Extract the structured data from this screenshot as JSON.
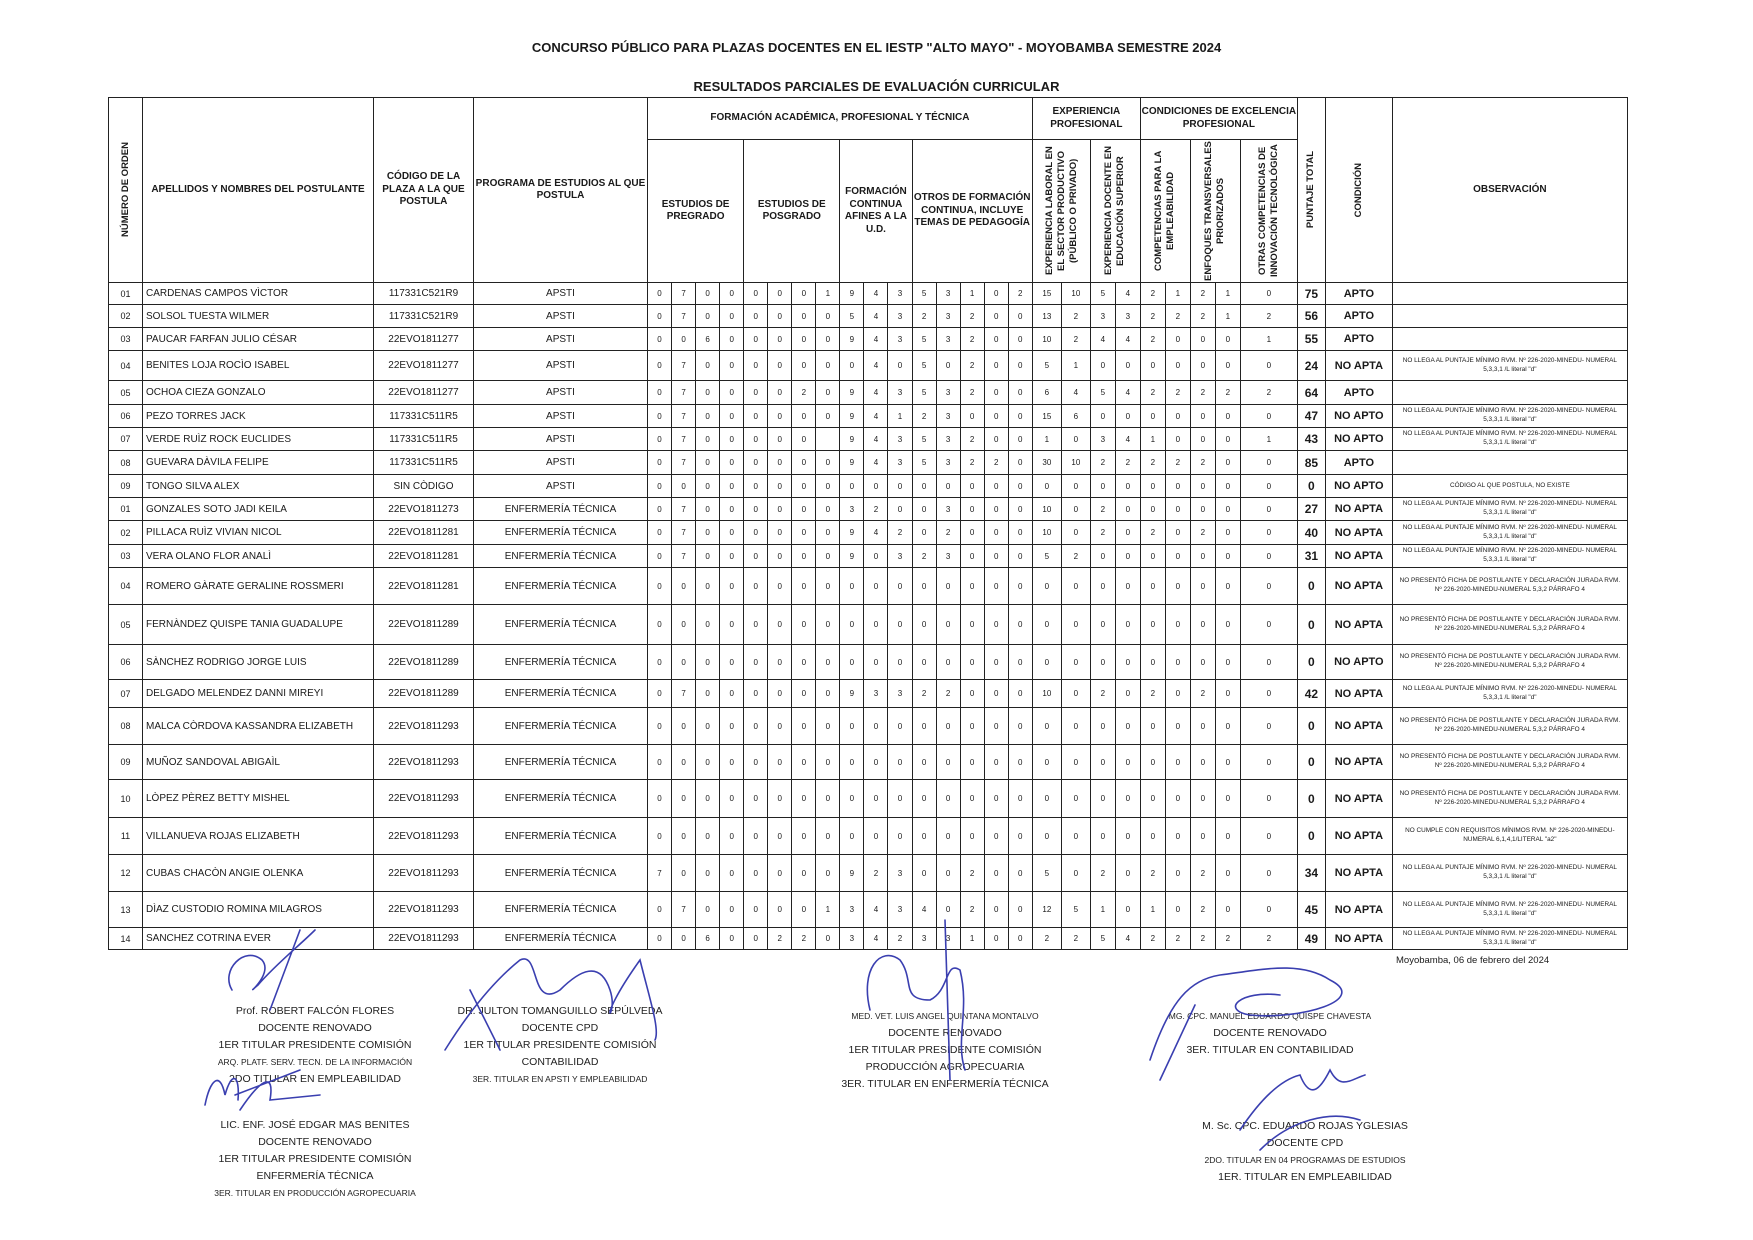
{
  "document": {
    "title": "CONCURSO PÚBLICO PARA PLAZAS DOCENTES EN EL IESTP \"ALTO MAYO\" - MOYOBAMBA SEMESTRE 2024",
    "subtitle": "RESULTADOS PARCIALES DE EVALUACIÓN CURRICULAR",
    "date": "Moyobamba, 06 de febrero del 2024"
  },
  "headers": {
    "numero": "NÚMERO DE ORDEN",
    "nombre": "APELLIDOS Y NOMBRES DEL POSTULANTE",
    "codigo": "CÓDIGO DE LA PLAZA A LA QUE POSTULA",
    "programa": "PROGRAMA DE ESTUDIOS AL QUE POSTULA",
    "formacion": "FORMACIÓN ACADÉMICA, PROFESIONAL Y TÉCNICA",
    "pregrado": "ESTUDIOS DE PREGRADO",
    "posgrado": "ESTUDIOS DE POSGRADO",
    "continua": "FORMACIÓN CONTINUA AFINES A LA U.D.",
    "otros": "OTROS DE FORMACIÓN CONTINUA, INCLUYE TEMAS DE PEDAGOGÍA",
    "experiencia": "EXPERIENCIA PROFESIONAL",
    "exp_laboral": "EXPERIENCIA LABORAL EN EL SECTOR PRODUCTIVO (PÚBLICO O PRIVADO)",
    "exp_docente": "EXPERIENCIA DOCENTE EN EDUCACIÓN SUPERIOR",
    "condiciones": "CONDICIONES DE EXCELENCIA PROFESIONAL",
    "competencias": "COMPETENCIAS PARA LA EMPLEABILIDAD",
    "enfoques": "ENFOQUES TRANSVERSALES PRIORIZADOS",
    "otras_comp": "OTRAS COMPETENCIAS DE INNOVACIÓN TECNOLÓGICA",
    "puntaje": "PUNTAJE TOTAL",
    "condicion": "CONDICIÓN",
    "observacion": "OBSERVACIÓN"
  },
  "rows": [
    {
      "num": "01",
      "name": "CARDENAS CAMPOS VÌCTOR",
      "code": "117331C521R9",
      "program": "APSTI",
      "scores": [
        "0",
        "7",
        "0",
        "0",
        "0",
        "0",
        "0",
        "1",
        "9",
        "4",
        "3",
        "5",
        "3",
        "1",
        "0",
        "2",
        "15",
        "10",
        "5",
        "4",
        "2",
        "1",
        "2",
        "1",
        "0"
      ],
      "total": "75",
      "condition": "APTO",
      "obs": ""
    },
    {
      "num": "02",
      "name": "SOLSOL TUESTA WILMER",
      "code": "117331C521R9",
      "program": "APSTI",
      "scores": [
        "0",
        "7",
        "0",
        "0",
        "0",
        "0",
        "0",
        "0",
        "5",
        "4",
        "3",
        "2",
        "3",
        "2",
        "0",
        "0",
        "13",
        "2",
        "3",
        "3",
        "2",
        "2",
        "2",
        "1",
        "2"
      ],
      "total": "56",
      "condition": "APTO",
      "obs": ""
    },
    {
      "num": "03",
      "name": "PAUCAR FARFAN JULIO CÉSAR",
      "code": "22EVO1811277",
      "program": "APSTI",
      "scores": [
        "0",
        "0",
        "6",
        "0",
        "0",
        "0",
        "0",
        "0",
        "9",
        "4",
        "3",
        "5",
        "3",
        "2",
        "0",
        "0",
        "10",
        "2",
        "4",
        "4",
        "2",
        "0",
        "0",
        "0",
        "1"
      ],
      "total": "55",
      "condition": "APTO",
      "obs": ""
    },
    {
      "num": "04",
      "name": "BENITES LOJA ROCÌO ISABEL",
      "code": "22EVO1811277",
      "program": "APSTI",
      "scores": [
        "0",
        "7",
        "0",
        "0",
        "0",
        "0",
        "0",
        "0",
        "0",
        "4",
        "0",
        "5",
        "0",
        "2",
        "0",
        "0",
        "5",
        "1",
        "0",
        "0",
        "0",
        "0",
        "0",
        "0",
        "0"
      ],
      "total": "24",
      "condition": "NO APTA",
      "obs": "NO LLEGA AL PUNTAJE MÍNIMO RVM. Nº 226-2020-MINEDU- NUMERAL 5,3,3,1 /L literal \"d\""
    },
    {
      "num": "05",
      "name": "OCHOA CIEZA GONZALO",
      "code": "22EVO1811277",
      "program": "APSTI",
      "scores": [
        "0",
        "7",
        "0",
        "0",
        "0",
        "0",
        "2",
        "0",
        "9",
        "4",
        "3",
        "5",
        "3",
        "2",
        "0",
        "0",
        "6",
        "4",
        "5",
        "4",
        "2",
        "2",
        "2",
        "2",
        "2"
      ],
      "total": "64",
      "condition": "APTO",
      "obs": ""
    },
    {
      "num": "06",
      "name": "PEZO TORRES JACK",
      "code": "117331C511R5",
      "program": "APSTI",
      "scores": [
        "0",
        "7",
        "0",
        "0",
        "0",
        "0",
        "0",
        "0",
        "9",
        "4",
        "1",
        "2",
        "3",
        "0",
        "0",
        "0",
        "15",
        "6",
        "0",
        "0",
        "0",
        "0",
        "0",
        "0",
        "0"
      ],
      "total": "47",
      "condition": "NO APTO",
      "obs": "NO LLEGA AL PUNTAJE MÍNIMO RVM. Nº 226-2020-MINEDU- NUMERAL 5,3,3,1 /L literal \"d\""
    },
    {
      "num": "07",
      "name": "VERDE RUÌZ ROCK EUCLIDES",
      "code": "117331C511R5",
      "program": "APSTI",
      "scores": [
        "0",
        "7",
        "0",
        "0",
        "0",
        "0",
        "0",
        "",
        "9",
        "4",
        "3",
        "5",
        "3",
        "2",
        "0",
        "0",
        "1",
        "0",
        "3",
        "4",
        "1",
        "0",
        "0",
        "0",
        "1"
      ],
      "total": "43",
      "condition": "NO APTO",
      "obs": "NO LLEGA AL PUNTAJE MÍNIMO RVM. Nº 226-2020-MINEDU- NUMERAL 5,3,3,1 /L literal \"d\""
    },
    {
      "num": "08",
      "name": "GUEVARA DÀVILA FELIPE",
      "code": "117331C511R5",
      "program": "APSTI",
      "scores": [
        "0",
        "7",
        "0",
        "0",
        "0",
        "0",
        "0",
        "0",
        "9",
        "4",
        "3",
        "5",
        "3",
        "2",
        "2",
        "0",
        "30",
        "10",
        "2",
        "2",
        "2",
        "2",
        "2",
        "0",
        "0"
      ],
      "total": "85",
      "condition": "APTO",
      "obs": ""
    },
    {
      "num": "09",
      "name": "TONGO SILVA ALEX",
      "code": "SIN CÒDIGO",
      "program": "APSTI",
      "scores": [
        "0",
        "0",
        "0",
        "0",
        "0",
        "0",
        "0",
        "0",
        "0",
        "0",
        "0",
        "0",
        "0",
        "0",
        "0",
        "0",
        "0",
        "0",
        "0",
        "0",
        "0",
        "0",
        "0",
        "0",
        "0"
      ],
      "total": "0",
      "condition": "NO APTO",
      "obs": "CÓDIGO AL QUE POSTULA, NO EXISTE"
    },
    {
      "num": "01",
      "name": "GONZALES SOTO JADI KEILA",
      "code": "22EVO1811273",
      "program": "ENFERMERÍA TÉCNICA",
      "scores": [
        "0",
        "7",
        "0",
        "0",
        "0",
        "0",
        "0",
        "0",
        "3",
        "2",
        "0",
        "0",
        "3",
        "0",
        "0",
        "0",
        "10",
        "0",
        "2",
        "0",
        "0",
        "0",
        "0",
        "0",
        "0"
      ],
      "total": "27",
      "condition": "NO APTA",
      "obs": "NO LLEGA AL PUNTAJE MÍNIMO RVM. Nº 226-2020-MINEDU- NUMERAL 5,3,3,1 /L literal \"d\""
    },
    {
      "num": "02",
      "name": "PILLACA RUÌZ VIVIAN NICOL",
      "code": "22EVO1811281",
      "program": "ENFERMERÍA TÉCNICA",
      "scores": [
        "0",
        "7",
        "0",
        "0",
        "0",
        "0",
        "0",
        "0",
        "9",
        "4",
        "2",
        "0",
        "2",
        "0",
        "0",
        "0",
        "10",
        "0",
        "2",
        "0",
        "2",
        "0",
        "2",
        "0",
        "0"
      ],
      "total": "40",
      "condition": "NO APTA",
      "obs": "NO LLEGA AL PUNTAJE MÍNIMO RVM. Nº 226-2020-MINEDU- NUMERAL 5,3,3,1 /L literal \"d\""
    },
    {
      "num": "03",
      "name": "VERA OLANO FLOR ANALÌ",
      "code": "22EVO1811281",
      "program": "ENFERMERÍA TÉCNICA",
      "scores": [
        "0",
        "7",
        "0",
        "0",
        "0",
        "0",
        "0",
        "0",
        "9",
        "0",
        "3",
        "2",
        "3",
        "0",
        "0",
        "0",
        "5",
        "2",
        "0",
        "0",
        "0",
        "0",
        "0",
        "0",
        "0"
      ],
      "total": "31",
      "condition": "NO APTA",
      "obs": "NO LLEGA AL PUNTAJE MÍNIMO RVM. Nº 226-2020-MINEDU- NUMERAL 5,3,3,1 /L literal \"d\""
    },
    {
      "num": "04",
      "name": "ROMERO GÀRATE GERALINE ROSSMERI",
      "code": "22EVO1811281",
      "program": "ENFERMERÍA TÉCNICA",
      "scores": [
        "0",
        "0",
        "0",
        "0",
        "0",
        "0",
        "0",
        "0",
        "0",
        "0",
        "0",
        "0",
        "0",
        "0",
        "0",
        "0",
        "0",
        "0",
        "0",
        "0",
        "0",
        "0",
        "0",
        "0",
        "0"
      ],
      "total": "0",
      "condition": "NO APTA",
      "obs": "NO PRESENTÓ FICHA DE POSTULANTE  Y DECLARACIÓN JURADA RVM. Nº 226-2020-MINEDU-NUMERAL 5,3,2 PÁRRAFO 4"
    },
    {
      "num": "05",
      "name": "FERNÀNDEZ QUISPE TANIA GUADALUPE",
      "code": "22EVO1811289",
      "program": "ENFERMERÍA TÉCNICA",
      "scores": [
        "0",
        "0",
        "0",
        "0",
        "0",
        "0",
        "0",
        "0",
        "0",
        "0",
        "0",
        "0",
        "0",
        "0",
        "0",
        "0",
        "0",
        "0",
        "0",
        "0",
        "0",
        "0",
        "0",
        "0",
        "0"
      ],
      "total": "0",
      "condition": "NO APTA",
      "obs": "NO PRESENTÓ FICHA DE POSTULANTE  Y DECLARACIÓN JURADA RVM. Nº 226-2020-MINEDU-NUMERAL 5,3,2 PÁRRAFO 4"
    },
    {
      "num": "06",
      "name": "SÀNCHEZ RODRIGO JORGE LUIS",
      "code": "22EVO1811289",
      "program": "ENFERMERÍA TÉCNICA",
      "scores": [
        "0",
        "0",
        "0",
        "0",
        "0",
        "0",
        "0",
        "0",
        "0",
        "0",
        "0",
        "0",
        "0",
        "0",
        "0",
        "0",
        "0",
        "0",
        "0",
        "0",
        "0",
        "0",
        "0",
        "0",
        "0"
      ],
      "total": "0",
      "condition": "NO APTO",
      "obs": "NO PRESENTÓ FICHA DE POSTULANTE  Y DECLARACIÓN JURADA RVM. Nº 226-2020-MINEDU-NUMERAL 5,3,2 PÁRRAFO 4"
    },
    {
      "num": "07",
      "name": "DELGADO MELENDEZ DANNI MIREYI",
      "code": "22EVO1811289",
      "program": "ENFERMERÍA TÉCNICA",
      "scores": [
        "0",
        "7",
        "0",
        "0",
        "0",
        "0",
        "0",
        "0",
        "9",
        "3",
        "3",
        "2",
        "2",
        "0",
        "0",
        "0",
        "10",
        "0",
        "2",
        "0",
        "2",
        "0",
        "2",
        "0",
        "0"
      ],
      "total": "42",
      "condition": "NO APTA",
      "obs": "NO LLEGA AL PUNTAJE MÍNIMO RVM. Nº 226-2020-MINEDU- NUMERAL 5,3,3,1 /L literal \"d\""
    },
    {
      "num": "08",
      "name": "MALCA CÒRDOVA KASSANDRA ELIZABETH",
      "code": "22EVO1811293",
      "program": "ENFERMERÍA TÉCNICA",
      "scores": [
        "0",
        "0",
        "0",
        "0",
        "0",
        "0",
        "0",
        "0",
        "0",
        "0",
        "0",
        "0",
        "0",
        "0",
        "0",
        "0",
        "0",
        "0",
        "0",
        "0",
        "0",
        "0",
        "0",
        "0",
        "0"
      ],
      "total": "0",
      "condition": "NO APTA",
      "obs": "NO PRESENTÓ FICHA DE POSTULANTE  Y DECLARACIÓN JURADA RVM. Nº 226-2020-MINEDU-NUMERAL 5,3,2 PÁRRAFO 4"
    },
    {
      "num": "09",
      "name": "MUÑOZ SANDOVAL ABIGAÌL",
      "code": "22EVO1811293",
      "program": "ENFERMERÍA TÉCNICA",
      "scores": [
        "0",
        "0",
        "0",
        "0",
        "0",
        "0",
        "0",
        "0",
        "0",
        "0",
        "0",
        "0",
        "0",
        "0",
        "0",
        "0",
        "0",
        "0",
        "0",
        "0",
        "0",
        "0",
        "0",
        "0",
        "0"
      ],
      "total": "0",
      "condition": "NO APTA",
      "obs": "NO PRESENTÓ FICHA DE POSTULANTE  Y DECLARACIÓN JURADA RVM. Nº 226-2020-MINEDU-NUMERAL 5,3,2 PÁRRAFO 4"
    },
    {
      "num": "10",
      "name": "LÒPEZ PÈREZ BETTY MISHEL",
      "code": "22EVO1811293",
      "program": "ENFERMERÍA TÉCNICA",
      "scores": [
        "0",
        "0",
        "0",
        "0",
        "0",
        "0",
        "0",
        "0",
        "0",
        "0",
        "0",
        "0",
        "0",
        "0",
        "0",
        "0",
        "0",
        "0",
        "0",
        "0",
        "0",
        "0",
        "0",
        "0",
        "0"
      ],
      "total": "0",
      "condition": "NO APTA",
      "obs": "NO PRESENTÓ FICHA DE POSTULANTE  Y DECLARACIÓN JURADA RVM. Nº 226-2020-MINEDU-NUMERAL 5,3,2 PÁRRAFO 4"
    },
    {
      "num": "11",
      "name": "VILLANUEVA ROJAS ELIZABETH",
      "code": "22EVO1811293",
      "program": "ENFERMERÍA TÉCNICA",
      "scores": [
        "0",
        "0",
        "0",
        "0",
        "0",
        "0",
        "0",
        "0",
        "0",
        "0",
        "0",
        "0",
        "0",
        "0",
        "0",
        "0",
        "0",
        "0",
        "0",
        "0",
        "0",
        "0",
        "0",
        "0",
        "0"
      ],
      "total": "0",
      "condition": "NO APTA",
      "obs": "NO CUMPLE CON REQUISITOS MÍNIMOS RVM. Nº 226-2020-MINEDU-NUMERAL 6,1,4,1/LITERAL \"a2\""
    },
    {
      "num": "12",
      "name": "CUBAS CHACÒN ANGIE OLENKA",
      "code": "22EVO1811293",
      "program": "ENFERMERÍA TÉCNICA",
      "scores": [
        "7",
        "0",
        "0",
        "0",
        "0",
        "0",
        "0",
        "0",
        "9",
        "2",
        "3",
        "0",
        "0",
        "2",
        "0",
        "0",
        "5",
        "0",
        "2",
        "0",
        "2",
        "0",
        "2",
        "0",
        "0"
      ],
      "total": "34",
      "condition": "NO APTA",
      "obs": "NO LLEGA AL PUNTAJE MÍNIMO RVM. Nº 226-2020-MINEDU- NUMERAL 5,3,3,1 /L literal \"d\""
    },
    {
      "num": "13",
      "name": "DÌAZ CUSTODIO ROMINA MILAGROS",
      "code": "22EVO1811293",
      "program": "ENFERMERÍA TÉCNICA",
      "scores": [
        "0",
        "7",
        "0",
        "0",
        "0",
        "0",
        "0",
        "1",
        "3",
        "4",
        "3",
        "4",
        "0",
        "2",
        "0",
        "0",
        "12",
        "5",
        "1",
        "0",
        "1",
        "0",
        "2",
        "0",
        "0"
      ],
      "total": "45",
      "condition": "NO APTA",
      "obs": "NO LLEGA AL PUNTAJE MÍNIMO RVM. Nº 226-2020-MINEDU- NUMERAL 5,3,3,1 /L literal \"d\""
    },
    {
      "num": "14",
      "name": "SANCHEZ COTRINA EVER",
      "code": "22EVO1811293",
      "program": "ENFERMERÍA TÉCNICA",
      "scores": [
        "0",
        "0",
        "6",
        "0",
        "0",
        "2",
        "2",
        "0",
        "3",
        "4",
        "2",
        "3",
        "3",
        "1",
        "0",
        "0",
        "2",
        "2",
        "5",
        "4",
        "2",
        "2",
        "2",
        "2",
        "2"
      ],
      "total": "49",
      "condition": "NO APTA",
      "obs": "NO LLEGA AL PUNTAJE MÍNIMO RVM. Nº 226-2020-MINEDU- NUMERAL 5,3,3,1 /L literal \"d\""
    }
  ],
  "signatories": [
    {
      "lines": [
        "Prof. ROBERT FALCÓN FLORES",
        "DOCENTE RENOVADO",
        "1ER TITULAR PRESIDENTE COMISIÓN",
        "ARQ. PLATF. SERV. TECN. DE LA INFORMACIÓN",
        "2DO TITULAR EN EMPLEABILIDAD"
      ]
    },
    {
      "lines": [
        "LIC. ENF. JOSÉ EDGAR MAS BENITES",
        "DOCENTE RENOVADO",
        "1ER TITULAR PRESIDENTE COMISIÓN",
        "ENFERMERÍA TÉCNICA",
        "3ER. TITULAR EN PRODUCCIÓN AGROPECUARIA"
      ]
    },
    {
      "lines": [
        "DR. JULTON TOMANGUILLO SEPÚLVEDA",
        "DOCENTE CPD",
        "1ER TITULAR PRESIDENTE COMISIÓN",
        "CONTABILIDAD",
        "3ER.  TITULAR EN APSTI Y EMPLEABILIDAD"
      ]
    },
    {
      "lines": [
        "MED. VET. LUIS ANGEL QUINTANA MONTALVO",
        "DOCENTE RENOVADO",
        "1ER TITULAR PRESIDENTE COMISIÓN",
        "PRODUCCIÓN AGROPECUARIA",
        "3ER. TITULAR EN ENFERMERÍA TÉCNICA"
      ]
    },
    {
      "lines": [
        "MG. CPC. MANUEL EDUARDO QUISPE CHAVESTA",
        "DOCENTE RENOVADO",
        "3ER. TITULAR EN CONTABILIDAD"
      ]
    },
    {
      "lines": [
        "M. Sc. CPC. EDUARDO ROJAS YGLESIAS",
        "DOCENTE CPD",
        "2DO. TITULAR EN 04 PROGRAMAS DE ESTUDIOS",
        "1ER. TITULAR EN EMPLEABILIDAD"
      ]
    }
  ],
  "colors": {
    "ink": "#3a3fb0",
    "text": "#1a1a1a"
  }
}
